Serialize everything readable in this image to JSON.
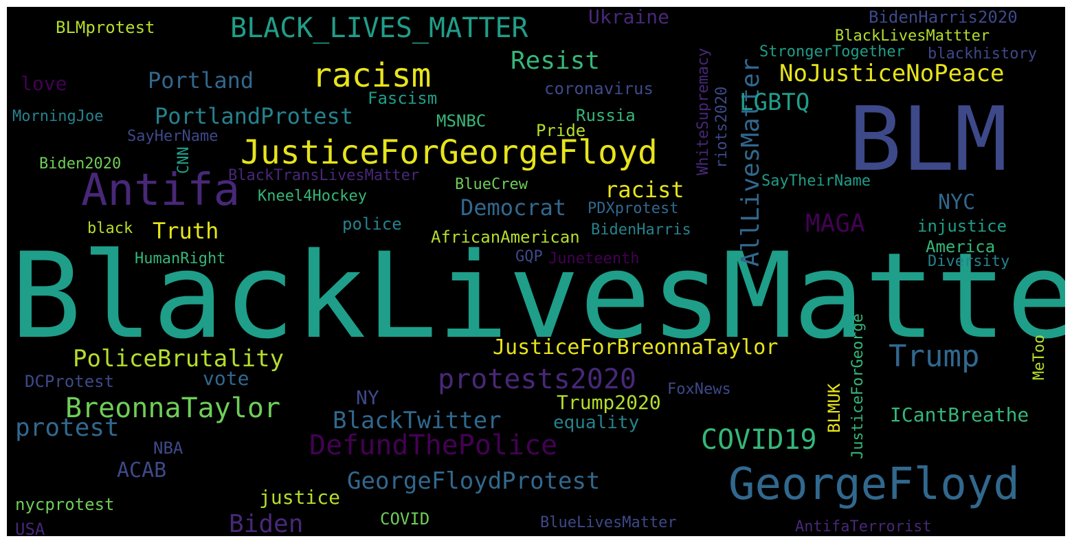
{
  "colors": {
    "yellow": "#e7e41b",
    "lime": "#b5de2b",
    "green": "#6ece58",
    "seagreen": "#35b779",
    "teal": "#1f9e89",
    "tealblue": "#26828e",
    "blue": "#31688e",
    "indigo": "#3e4989",
    "violet": "#482878",
    "purple": "#440154"
  },
  "words": [
    {
      "text": "BlackLivesMatter",
      "color": "teal"
    },
    {
      "text": "BLM",
      "color": "indigo"
    },
    {
      "text": "GeorgeFloyd",
      "color": "blue"
    },
    {
      "text": "Antifa",
      "color": "violet"
    },
    {
      "text": "JusticeForGeorgeFloyd",
      "color": "yellow"
    },
    {
      "text": "racism",
      "color": "yellow"
    },
    {
      "text": "BLACK_LIVES_MATTER",
      "color": "teal"
    },
    {
      "text": "AllLivesMatter",
      "color": "blue"
    },
    {
      "text": "Resist",
      "color": "seagreen"
    },
    {
      "text": "NoJusticeNoPeace",
      "color": "yellow"
    },
    {
      "text": "Portland",
      "color": "blue"
    },
    {
      "text": "PortlandProtest",
      "color": "tealblue"
    },
    {
      "text": "LGBTQ",
      "color": "teal"
    },
    {
      "text": "Trump",
      "color": "blue"
    },
    {
      "text": "protests2020",
      "color": "violet"
    },
    {
      "text": "BreonnaTaylor",
      "color": "green"
    },
    {
      "text": "DefundThePolice",
      "color": "purple"
    },
    {
      "text": "COVID19",
      "color": "seagreen"
    },
    {
      "text": "BlackTwitter",
      "color": "blue"
    },
    {
      "text": "protest",
      "color": "blue"
    },
    {
      "text": "PoliceBrutality",
      "color": "lime"
    },
    {
      "text": "JusticeForBreonnaTaylor",
      "color": "yellow"
    },
    {
      "text": "GeorgeFloydProtest",
      "color": "blue"
    },
    {
      "text": "MAGA",
      "color": "purple"
    },
    {
      "text": "Democrat",
      "color": "blue"
    },
    {
      "text": "racist",
      "color": "yellow"
    },
    {
      "text": "Truth",
      "color": "yellow"
    },
    {
      "text": "Biden",
      "color": "violet"
    },
    {
      "text": "Ukraine",
      "color": "violet"
    },
    {
      "text": "BLMprotest",
      "color": "lime"
    },
    {
      "text": "BidenHarris2020",
      "color": "indigo"
    },
    {
      "text": "BlackLivesMattter",
      "color": "lime"
    },
    {
      "text": "StrongerTogether",
      "color": "teal"
    },
    {
      "text": "blackhistory",
      "color": "indigo"
    },
    {
      "text": "love",
      "color": "purple"
    },
    {
      "text": "coronavirus",
      "color": "indigo"
    },
    {
      "text": "Fascism",
      "color": "teal"
    },
    {
      "text": "MorningJoe",
      "color": "tealblue"
    },
    {
      "text": "MSNBC",
      "color": "seagreen"
    },
    {
      "text": "Russia",
      "color": "seagreen"
    },
    {
      "text": "Pride",
      "color": "lime"
    },
    {
      "text": "SayHerName",
      "color": "indigo"
    },
    {
      "text": "Biden2020",
      "color": "green"
    },
    {
      "text": "CNN",
      "color": "teal"
    },
    {
      "text": "BlackTransLivesMatter",
      "color": "violet"
    },
    {
      "text": "BlueCrew",
      "color": "green"
    },
    {
      "text": "Kneel4Hockey",
      "color": "seagreen"
    },
    {
      "text": "SayTheirName",
      "color": "teal"
    },
    {
      "text": "WhiteSupremacy",
      "color": "violet"
    },
    {
      "text": "riots2020",
      "color": "indigo"
    },
    {
      "text": "NYC",
      "color": "blue"
    },
    {
      "text": "PDXprotest",
      "color": "blue"
    },
    {
      "text": "black",
      "color": "lime"
    },
    {
      "text": "police",
      "color": "tealblue"
    },
    {
      "text": "AfricanAmerican",
      "color": "lime"
    },
    {
      "text": "BidenHarris",
      "color": "tealblue"
    },
    {
      "text": "injustice",
      "color": "teal"
    },
    {
      "text": "America",
      "color": "seagreen"
    },
    {
      "text": "Diversity",
      "color": "tealblue"
    },
    {
      "text": "HumanRight",
      "color": "seagreen"
    },
    {
      "text": "GQP",
      "color": "indigo"
    },
    {
      "text": "Juneteenth",
      "color": "purple"
    },
    {
      "text": "vote",
      "color": "blue"
    },
    {
      "text": "DCProtest",
      "color": "indigo"
    },
    {
      "text": "NY",
      "color": "indigo"
    },
    {
      "text": "Trump2020",
      "color": "lime"
    },
    {
      "text": "FoxNews",
      "color": "indigo"
    },
    {
      "text": "BLMUK",
      "color": "yellow"
    },
    {
      "text": "JusticeForGeorge",
      "color": "seagreen"
    },
    {
      "text": "MeToo",
      "color": "lime"
    },
    {
      "text": "ICantBreathe",
      "color": "seagreen"
    },
    {
      "text": "equality",
      "color": "tealblue"
    },
    {
      "text": "NBA",
      "color": "indigo"
    },
    {
      "text": "ACAB",
      "color": "indigo"
    },
    {
      "text": "justice",
      "color": "lime"
    },
    {
      "text": "nycprotest",
      "color": "green"
    },
    {
      "text": "USA",
      "color": "violet"
    },
    {
      "text": "COVID",
      "color": "green"
    },
    {
      "text": "BlueLivesMatter",
      "color": "indigo"
    },
    {
      "text": "AntifaTerrorist",
      "color": "violet"
    }
  ]
}
